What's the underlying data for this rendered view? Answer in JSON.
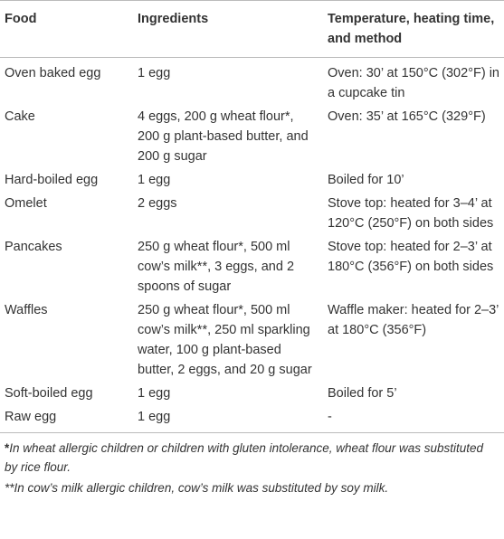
{
  "table": {
    "header": [
      "Food",
      "Ingredients",
      "Temperature, heating time, and method"
    ],
    "rows": [
      [
        "Oven baked egg",
        "1 egg",
        "Oven: 30’ at 150°C (302°F) in a cupcake tin"
      ],
      [
        "Cake",
        "4 eggs, 200 g wheat flour*, 200 g plant-based butter, and 200 g sugar",
        "Oven: 35’ at 165°C (329°F)"
      ],
      [
        "Hard-boiled egg",
        "1 egg",
        "Boiled for 10’"
      ],
      [
        "Omelet",
        "2 eggs",
        "Stove top: heated for 3–4’ at 120°C (250°F) on both sides"
      ],
      [
        "Pancakes",
        "250 g wheat flour*, 500 ml cow’s milk**, 3 eggs, and 2 spoons of sugar",
        "Stove top: heated for 2–3’ at 180°C (356°F) on both sides"
      ],
      [
        "Waffles",
        "250 g wheat flour*, 500 ml cow’s milk**, 250 ml sparkling water, 100 g plant-based butter, 2 eggs, and 20 g sugar",
        "Waffle maker: heated for 2–3’ at 180°C (356°F)"
      ],
      [
        "Soft-boiled egg",
        "1 egg",
        "Boiled for 5’"
      ],
      [
        "Raw egg",
        "1 egg",
        "-"
      ]
    ]
  },
  "footnotes": [
    {
      "marker": "*",
      "text": "In wheat allergic children or children with gluten intolerance, wheat flour was substituted by rice flour."
    },
    {
      "marker": "**",
      "text": "In cow’s milk allergic children, cow’s milk was substituted by soy milk."
    }
  ]
}
